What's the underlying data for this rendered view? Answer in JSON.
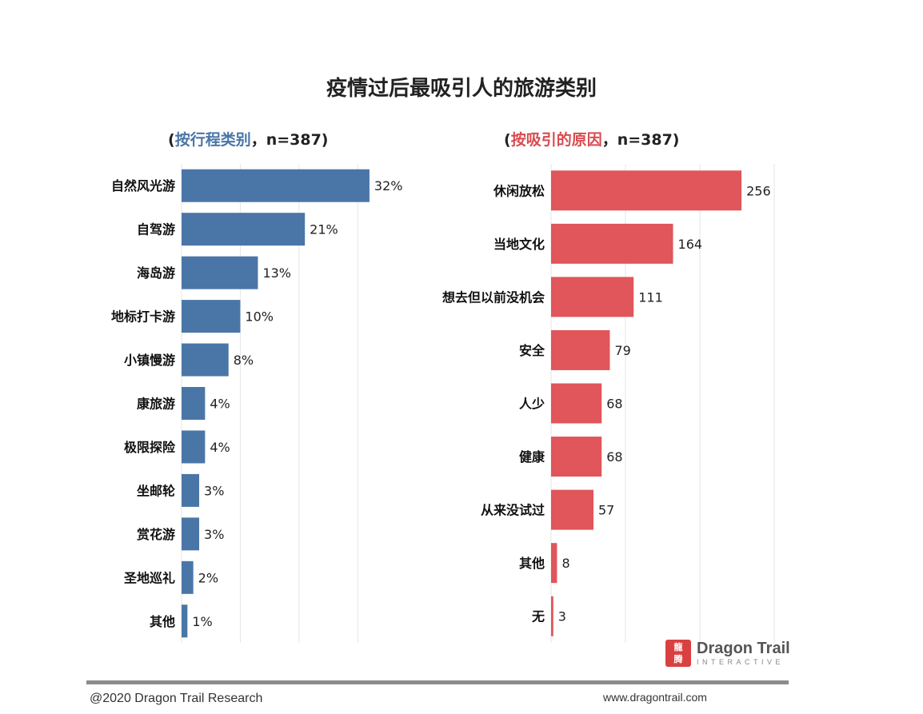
{
  "title": "疫情过后最吸引人的旅游类别",
  "left_subtitle": {
    "open": "(",
    "key": "按行程类别",
    "rest": "，n=387)"
  },
  "right_subtitle": {
    "open": "(",
    "key": "按吸引的原因",
    "rest": "，n=387)"
  },
  "colors": {
    "left_bar": "#4a76a7",
    "right_bar": "#e0565a",
    "grid": "#e6e6e6"
  },
  "chart_data": [
    {
      "type": "bar",
      "orientation": "horizontal",
      "title": "按行程类别，n=387",
      "categories": [
        "自然风光游",
        "自驾游",
        "海岛游",
        "地标打卡游",
        "小镇慢游",
        "康旅游",
        "极限探险",
        "坐邮轮",
        "赏花游",
        "圣地巡礼",
        "其他"
      ],
      "values": [
        32,
        21,
        13,
        10,
        8,
        4,
        4,
        3,
        3,
        2,
        1
      ],
      "value_labels": [
        "32%",
        "21%",
        "13%",
        "10%",
        "8%",
        "4%",
        "4%",
        "3%",
        "3%",
        "2%",
        "1%"
      ],
      "xlim": [
        0,
        39.5
      ],
      "grid": true
    },
    {
      "type": "bar",
      "orientation": "horizontal",
      "title": "按吸引的原因，n=387",
      "categories": [
        "休闲放松",
        "当地文化",
        "想去但以前没机会",
        "安全",
        "人少",
        "健康",
        "从来没试过",
        "其他",
        "无"
      ],
      "values": [
        256,
        164,
        111,
        79,
        68,
        68,
        57,
        8,
        3
      ],
      "value_labels": [
        "256",
        "164",
        "111",
        "79",
        "68",
        "68",
        "57",
        "8",
        "3"
      ],
      "xlim": [
        0,
        300
      ],
      "grid": true
    }
  ],
  "logo": {
    "mark": "龍\n腾",
    "name": "Dragon Trail",
    "sub": "INTERACTIVE"
  },
  "footer": {
    "left": "@2020 Dragon Trail Research",
    "right": "www.dragontrail.com"
  }
}
